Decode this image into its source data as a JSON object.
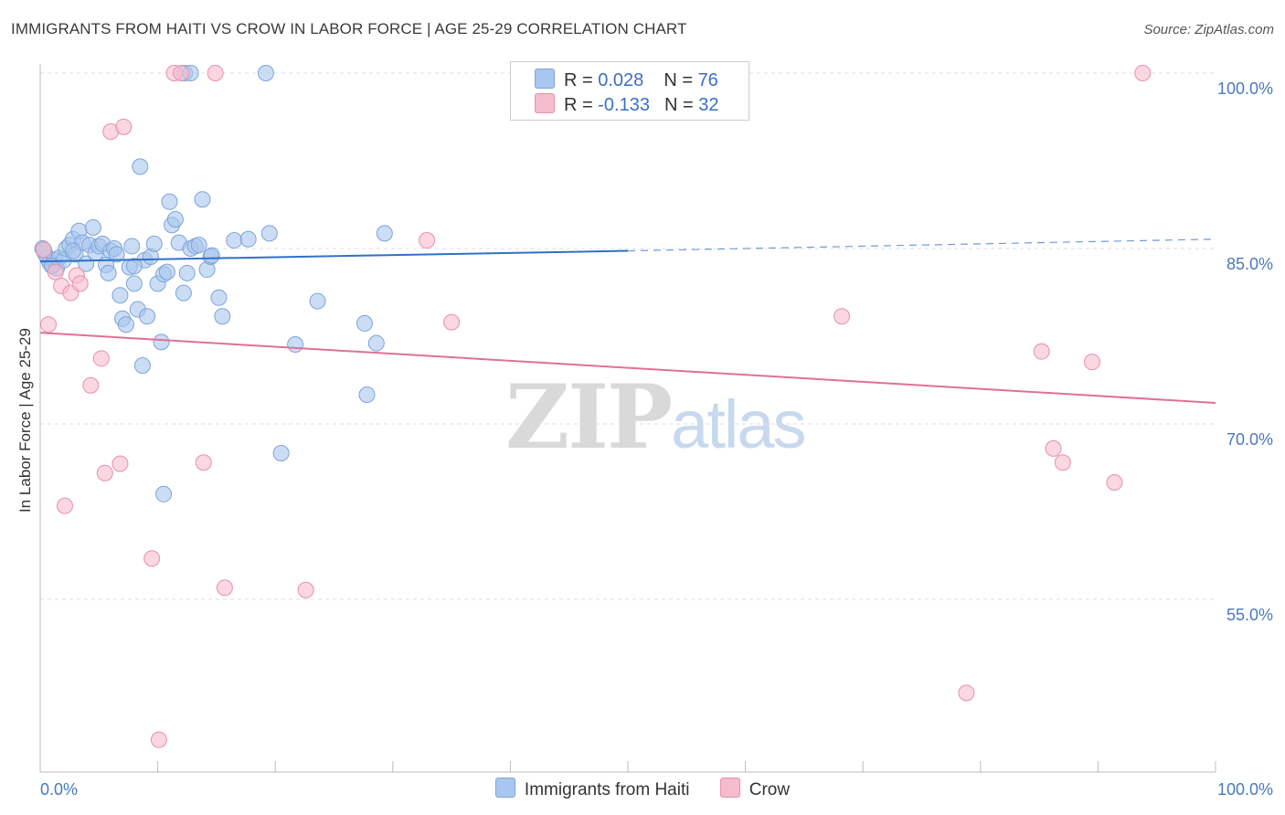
{
  "title": "IMMIGRANTS FROM HAITI VS CROW IN LABOR FORCE | AGE 25-29 CORRELATION CHART",
  "source": "Source: ZipAtlas.com",
  "watermark": {
    "zip": "ZIP",
    "atlas": "atlas"
  },
  "legend": {
    "rows": [
      {
        "r_label": "R = ",
        "r_value": "0.028",
        "n_label": "N = ",
        "n_value": "76"
      },
      {
        "r_label": "R = ",
        "r_value": "-0.133",
        "n_label": "N = ",
        "n_value": "32"
      }
    ]
  },
  "colors": {
    "blue_fill": "#a9c6ee",
    "blue_stroke": "#7da4d8",
    "blue_line": "#3070c8",
    "pink_fill": "#f6bccd",
    "pink_stroke": "#e890ab",
    "pink_line": "#e07098",
    "tick_text": "#4a78c0",
    "grid": "#dddddd"
  },
  "chart_data": {
    "type": "scatter",
    "title": "IMMIGRANTS FROM HAITI VS CROW IN LABOR FORCE | AGE 25-29 CORRELATION CHART",
    "xlabel": "",
    "ylabel": "In Labor Force | Age 25-29",
    "xlim": [
      0,
      100
    ],
    "ylim": [
      38,
      100
    ],
    "x_tick_labels": [
      "0.0%",
      "100.0%"
    ],
    "y_ticks": [
      {
        "value": 100,
        "label": "100.0%"
      },
      {
        "value": 85,
        "label": "85.0%"
      },
      {
        "value": 70,
        "label": "70.0%"
      },
      {
        "value": 55,
        "label": "55.0%"
      }
    ],
    "series": [
      {
        "name": "Immigrants from Haiti",
        "color": "blue",
        "trend": {
          "x0": 0,
          "y0": 83.9,
          "x1": 50,
          "y1": 84.8,
          "dashed_to_x": 100,
          "dashed_to_y": 85.8
        },
        "points": [
          [
            0.2,
            85.0
          ],
          [
            0.4,
            84.6
          ],
          [
            0.6,
            84.2
          ],
          [
            0.8,
            83.8
          ],
          [
            1.0,
            83.6
          ],
          [
            1.2,
            84.0
          ],
          [
            1.4,
            83.3
          ],
          [
            1.6,
            84.2
          ],
          [
            2.0,
            84.0
          ],
          [
            2.2,
            85.0
          ],
          [
            2.5,
            85.3
          ],
          [
            2.8,
            85.8
          ],
          [
            3.0,
            84.5
          ],
          [
            3.3,
            86.5
          ],
          [
            3.6,
            85.5
          ],
          [
            3.9,
            83.7
          ],
          [
            4.2,
            85.3
          ],
          [
            4.5,
            86.8
          ],
          [
            4.7,
            84.6
          ],
          [
            5.0,
            85.2
          ],
          [
            5.3,
            85.4
          ],
          [
            5.6,
            83.6
          ],
          [
            5.8,
            82.9
          ],
          [
            6.0,
            84.8
          ],
          [
            6.3,
            85.0
          ],
          [
            6.5,
            84.5
          ],
          [
            6.8,
            81.0
          ],
          [
            7.0,
            79.0
          ],
          [
            7.3,
            78.5
          ],
          [
            7.6,
            83.4
          ],
          [
            7.8,
            85.2
          ],
          [
            8.0,
            82.0
          ],
          [
            8.3,
            79.8
          ],
          [
            8.5,
            92.0
          ],
          [
            8.7,
            75.0
          ],
          [
            8.9,
            84.0
          ],
          [
            9.1,
            79.2
          ],
          [
            9.4,
            84.3
          ],
          [
            9.7,
            85.4
          ],
          [
            10.0,
            82.0
          ],
          [
            10.3,
            77.0
          ],
          [
            10.5,
            82.8
          ],
          [
            10.8,
            83.0
          ],
          [
            11.0,
            89.0
          ],
          [
            11.2,
            87.0
          ],
          [
            11.5,
            87.5
          ],
          [
            11.8,
            85.5
          ],
          [
            12.2,
            81.2
          ],
          [
            12.5,
            82.9
          ],
          [
            12.8,
            85.0
          ],
          [
            13.2,
            85.2
          ],
          [
            13.5,
            85.3
          ],
          [
            13.8,
            89.2
          ],
          [
            14.2,
            83.2
          ],
          [
            14.5,
            84.3
          ],
          [
            15.2,
            80.8
          ],
          [
            15.5,
            79.2
          ],
          [
            16.5,
            85.7
          ],
          [
            17.7,
            85.8
          ],
          [
            19.5,
            86.3
          ],
          [
            20.5,
            67.5
          ],
          [
            21.7,
            76.8
          ],
          [
            23.6,
            80.5
          ],
          [
            27.6,
            78.6
          ],
          [
            27.8,
            72.5
          ],
          [
            28.6,
            76.9
          ],
          [
            29.3,
            86.3
          ],
          [
            10.5,
            64.0
          ],
          [
            12.3,
            100.0
          ],
          [
            12.8,
            100.0
          ],
          [
            19.2,
            100.0
          ],
          [
            2.8,
            84.8
          ],
          [
            8.0,
            83.5
          ],
          [
            14.6,
            84.4
          ],
          [
            1.0,
            83.5
          ],
          [
            0.3,
            84.9
          ]
        ]
      },
      {
        "name": "Crow",
        "color": "pink",
        "trend": {
          "x0": 0,
          "y0": 77.8,
          "x1": 100,
          "y1": 71.8
        },
        "points": [
          [
            0.3,
            84.9
          ],
          [
            0.7,
            78.5
          ],
          [
            1.3,
            83.0
          ],
          [
            1.8,
            81.8
          ],
          [
            2.1,
            63.0
          ],
          [
            2.6,
            81.2
          ],
          [
            3.1,
            82.7
          ],
          [
            3.4,
            82.0
          ],
          [
            5.2,
            75.6
          ],
          [
            5.5,
            65.8
          ],
          [
            6.0,
            95.0
          ],
          [
            6.8,
            66.6
          ],
          [
            7.1,
            95.4
          ],
          [
            9.5,
            58.5
          ],
          [
            10.1,
            43.0
          ],
          [
            11.4,
            100.0
          ],
          [
            12.0,
            100.0
          ],
          [
            13.9,
            66.7
          ],
          [
            14.9,
            100.0
          ],
          [
            15.7,
            56.0
          ],
          [
            22.6,
            55.8
          ],
          [
            32.9,
            85.7
          ],
          [
            35.0,
            78.7
          ],
          [
            68.2,
            79.2
          ],
          [
            78.8,
            47.0
          ],
          [
            85.2,
            76.2
          ],
          [
            86.2,
            67.9
          ],
          [
            87.0,
            66.7
          ],
          [
            89.5,
            75.3
          ],
          [
            91.4,
            65.0
          ],
          [
            93.8,
            100.0
          ],
          [
            4.3,
            73.3
          ]
        ]
      }
    ]
  },
  "bottom_legend": [
    {
      "label": "Immigrants from Haiti",
      "color": "blue"
    },
    {
      "label": "Crow",
      "color": "pink"
    }
  ]
}
